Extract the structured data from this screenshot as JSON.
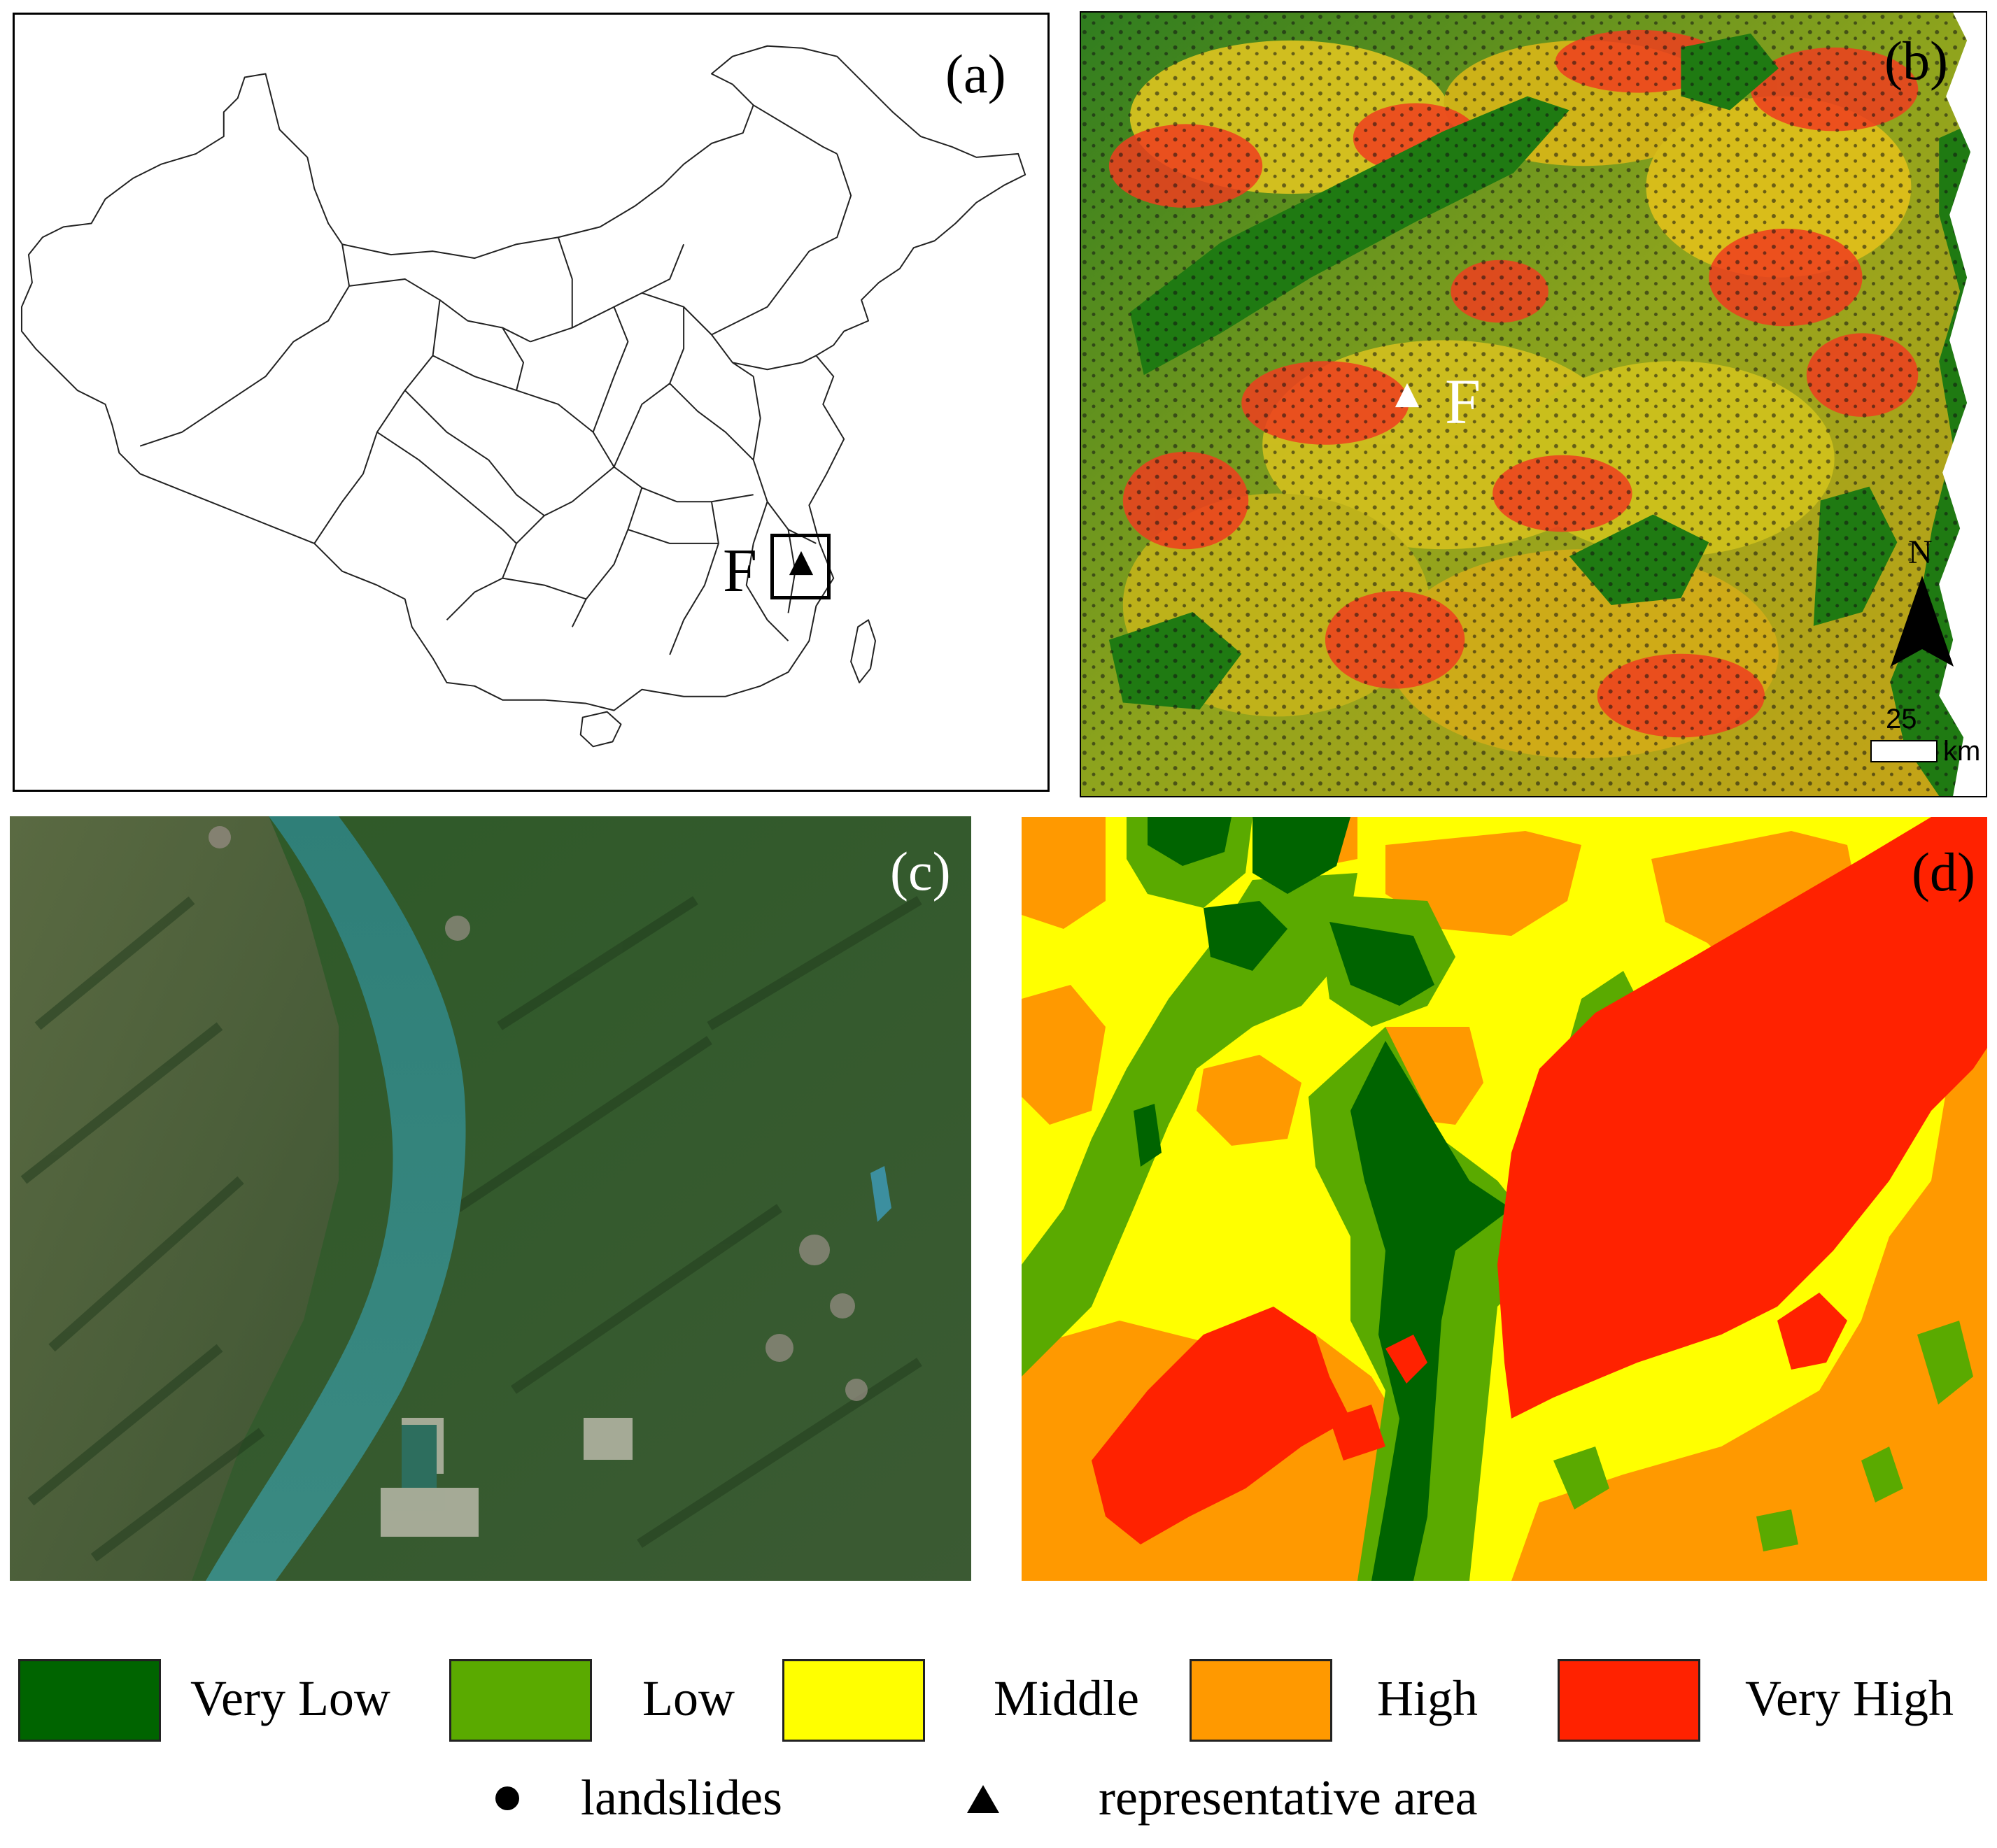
{
  "panels": {
    "a": {
      "label": "(a)",
      "marker_label": "F"
    },
    "b": {
      "label": "(b)",
      "marker_label": "F",
      "north": "N",
      "scale_value": "25",
      "scale_unit": "km"
    },
    "c": {
      "label": "(c)"
    },
    "d": {
      "label": "(d)"
    }
  },
  "legend": {
    "classes": [
      {
        "label": "Very Low",
        "color": "#006400"
      },
      {
        "label": "Low",
        "color": "#5aaa00"
      },
      {
        "label": "Middle",
        "color": "#ffff00"
      },
      {
        "label": "High",
        "color": "#ff9900"
      },
      {
        "label": "Very High",
        "color": "#ff2200"
      }
    ],
    "symbols": [
      {
        "label": "landslides",
        "icon": "dot-icon"
      },
      {
        "label": "representative area",
        "icon": "triangle-icon"
      }
    ]
  }
}
